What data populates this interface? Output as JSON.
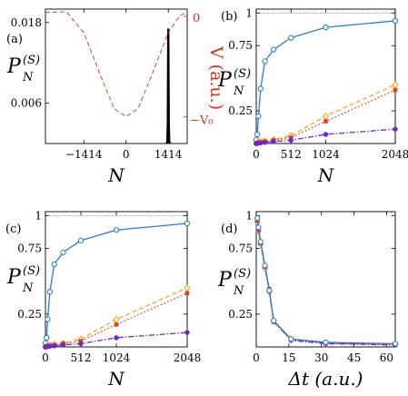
{
  "colors": {
    "blue": "#2b7bd6",
    "orange": "#f5a623",
    "red": "#e2401c",
    "purple": "#6a28c4",
    "red_axis": "#d7301f",
    "black": "#000000"
  },
  "chart_data": [
    {
      "panel": "(a)",
      "type": "line",
      "ylabel": "P",
      "ylabel_sub": "N",
      "ylabel_sup": "(S)",
      "y2label": "V (a.u.)",
      "xlabel": "N",
      "xlim": [
        -2700,
        2048
      ],
      "ylim": [
        0,
        0.02
      ],
      "xticks": [
        -1414,
        0,
        1414
      ],
      "xtick_labels": [
        "-1414",
        "0",
        "1414"
      ],
      "yticks": [
        0.006,
        0.018
      ],
      "ytick_labels": [
        "0.006",
        "0.018"
      ],
      "y2ticks": [
        "0",
        "−V₀"
      ],
      "series": [
        {
          "style": "solid-black",
          "x": [
            1350,
            1380,
            1395,
            1405,
            1410,
            1414,
            1418,
            1425,
            1435,
            1450,
            1480
          ],
          "y": [
            0,
            0.0002,
            0.003,
            0.012,
            0.0165,
            0.017,
            0.0165,
            0.011,
            0.003,
            0.0003,
            0
          ]
        },
        {
          "style": "dashed-red",
          "x": [
            -2700,
            -2000,
            -1414,
            -800,
            -400,
            0,
            400,
            800,
            1414,
            1800,
            2048
          ],
          "y": [
            0.0195,
            0.0196,
            0.0165,
            0.0095,
            0.0052,
            0.004,
            0.0052,
            0.0095,
            0.0165,
            0.019,
            0.0196
          ]
        }
      ]
    },
    {
      "panel": "(b)",
      "type": "line",
      "ylabel": "P",
      "ylabel_sub": "N",
      "ylabel_sup": "(S)",
      "xlabel": "N",
      "xlim": [
        0,
        2048
      ],
      "ylim": [
        0,
        1.03
      ],
      "xticks": [
        0,
        512,
        1024,
        2048
      ],
      "xtick_labels": [
        "0",
        "512",
        "1024",
        "2048"
      ],
      "yticks": [
        0.25,
        0.75,
        1
      ],
      "ytick_labels": [
        "0.25",
        "0.75",
        "1"
      ],
      "reference_line": 1,
      "series": [
        {
          "color": "blue",
          "marker": "open-circle",
          "line": "solid",
          "x": [
            0,
            16,
            32,
            64,
            128,
            256,
            512,
            1024,
            2048
          ],
          "y": [
            0.03,
            0.07,
            0.21,
            0.42,
            0.63,
            0.72,
            0.81,
            0.89,
            0.94
          ]
        },
        {
          "color": "orange",
          "marker": "open-diamond",
          "line": "dashed",
          "x": [
            0,
            16,
            32,
            64,
            128,
            256,
            512,
            1024,
            2048
          ],
          "y": [
            0.0,
            0.005,
            0.01,
            0.015,
            0.02,
            0.03,
            0.06,
            0.21,
            0.45
          ]
        },
        {
          "color": "red",
          "marker": "filled-square",
          "line": "dotted",
          "x": [
            0,
            16,
            32,
            64,
            128,
            256,
            512,
            1024,
            2048
          ],
          "y": [
            0.0,
            0.003,
            0.007,
            0.01,
            0.015,
            0.025,
            0.045,
            0.17,
            0.41
          ]
        },
        {
          "color": "purple",
          "marker": "filled-circle",
          "line": "dash-dot",
          "x": [
            0,
            16,
            32,
            64,
            128,
            256,
            512,
            1024,
            2048
          ],
          "y": [
            0.0,
            0.002,
            0.003,
            0.005,
            0.008,
            0.015,
            0.025,
            0.07,
            0.11
          ]
        }
      ]
    },
    {
      "panel": "(c)",
      "type": "line",
      "ylabel": "P",
      "ylabel_sub": "N",
      "ylabel_sup": "(S)",
      "xlabel": "N",
      "xlim": [
        0,
        2048
      ],
      "ylim": [
        0,
        1.03
      ],
      "xticks": [
        0,
        512,
        1024,
        2048
      ],
      "xtick_labels": [
        "0",
        "512",
        "1024",
        "2048"
      ],
      "yticks": [
        0.25,
        0.75,
        1
      ],
      "ytick_labels": [
        "0.25",
        "0.75",
        "1"
      ],
      "reference_line": 1,
      "series": [
        {
          "color": "blue",
          "marker": "open-circle",
          "line": "solid",
          "x": [
            0,
            16,
            32,
            64,
            128,
            256,
            512,
            1024,
            2048
          ],
          "y": [
            0.03,
            0.07,
            0.21,
            0.42,
            0.63,
            0.72,
            0.81,
            0.89,
            0.94
          ]
        },
        {
          "color": "orange",
          "marker": "open-diamond",
          "line": "dashed",
          "x": [
            0,
            16,
            32,
            64,
            128,
            256,
            512,
            1024,
            2048
          ],
          "y": [
            0.0,
            0.005,
            0.01,
            0.015,
            0.02,
            0.03,
            0.06,
            0.21,
            0.45
          ]
        },
        {
          "color": "red",
          "marker": "filled-square",
          "line": "dotted",
          "x": [
            0,
            16,
            32,
            64,
            128,
            256,
            512,
            1024,
            2048
          ],
          "y": [
            0.0,
            0.003,
            0.007,
            0.01,
            0.015,
            0.025,
            0.045,
            0.17,
            0.41
          ]
        },
        {
          "color": "purple",
          "marker": "filled-circle",
          "line": "dash-dot",
          "x": [
            0,
            16,
            32,
            64,
            128,
            256,
            512,
            1024,
            2048
          ],
          "y": [
            0.0,
            0.002,
            0.003,
            0.005,
            0.008,
            0.015,
            0.025,
            0.07,
            0.11
          ]
        }
      ]
    },
    {
      "panel": "(d)",
      "type": "line",
      "ylabel": "P",
      "ylabel_sub": "N",
      "ylabel_sup": "(S)",
      "xlabel": "Δt (a.u.)",
      "xlim": [
        0,
        64
      ],
      "ylim": [
        0,
        1.03
      ],
      "xticks": [
        0,
        15,
        30,
        45,
        60
      ],
      "xtick_labels": [
        "0",
        "15",
        "30",
        "45",
        "60"
      ],
      "yticks": [
        0.25,
        0.75,
        1
      ],
      "ytick_labels": [
        "0.25",
        "0.75",
        "1"
      ],
      "series": [
        {
          "color": "orange",
          "marker": "open-diamond",
          "line": "dashed",
          "x": [
            0.5,
            1,
            2,
            4,
            6,
            8,
            16,
            32,
            64
          ],
          "y": [
            0.95,
            0.88,
            0.78,
            0.6,
            0.42,
            0.2,
            0.06,
            0.03,
            0.02
          ]
        },
        {
          "color": "red",
          "marker": "filled-square",
          "line": "dotted",
          "x": [
            0.5,
            1,
            2,
            4,
            6,
            8,
            16,
            32,
            64
          ],
          "y": [
            0.96,
            0.89,
            0.79,
            0.61,
            0.43,
            0.19,
            0.055,
            0.028,
            0.018
          ]
        },
        {
          "color": "purple",
          "marker": "filled-circle",
          "line": "dash-dot",
          "x": [
            0.5,
            1,
            2,
            4,
            6,
            8,
            16,
            32,
            64
          ],
          "y": [
            0.97,
            0.9,
            0.8,
            0.62,
            0.44,
            0.2,
            0.05,
            0.025,
            0.015
          ]
        },
        {
          "color": "blue",
          "marker": "open-circle",
          "line": "solid",
          "x": [
            0.5,
            1,
            2,
            4,
            6,
            8,
            16,
            32,
            64
          ],
          "y": [
            0.98,
            0.91,
            0.8,
            0.62,
            0.43,
            0.2,
            0.06,
            0.035,
            0.025
          ]
        }
      ]
    }
  ]
}
